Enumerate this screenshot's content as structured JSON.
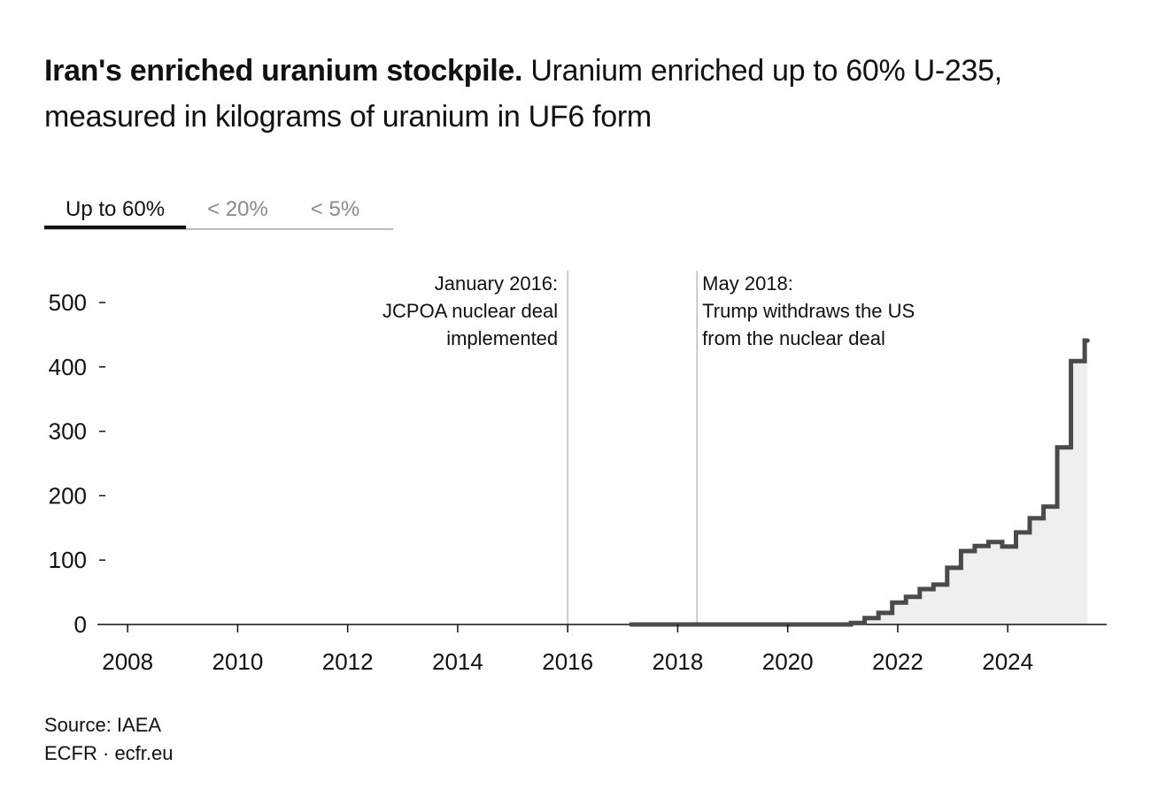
{
  "title": {
    "bold": "Iran's enriched uranium stockpile.",
    "rest": "Uranium enriched up to 60% U-235, measured in kilograms of uranium in UF6 form"
  },
  "tabs": [
    {
      "label": "Up to 60%",
      "active": true
    },
    {
      "label": "< 20%",
      "active": false
    },
    {
      "label": "< 5%",
      "active": false
    }
  ],
  "colors": {
    "line": "#4a4a4a",
    "area": "#efefef",
    "annotation_line": "#bfbfbf",
    "axis": "#111111",
    "tab_inactive": "#8a8a8a"
  },
  "chart_data": {
    "type": "area",
    "step": true,
    "title": "",
    "xlabel": "",
    "ylabel": "",
    "xlim": [
      2007.45,
      2025.8
    ],
    "ylim": [
      0,
      550
    ],
    "x_ticks": [
      2008,
      2010,
      2012,
      2014,
      2016,
      2018,
      2020,
      2022,
      2024
    ],
    "x_tick_labels": [
      "2008",
      "2010",
      "2012",
      "2014",
      "2016",
      "2018",
      "2020",
      "2022",
      "2024"
    ],
    "y_ticks": [
      0,
      100,
      200,
      300,
      400,
      500
    ],
    "y_tick_labels": [
      "0",
      "100",
      "200",
      "300",
      "400",
      "500"
    ],
    "grid": false,
    "series": [
      {
        "x": [
          2017.15,
          2021.15,
          2021.4,
          2021.65,
          2021.9,
          2022.15,
          2022.4,
          2022.65,
          2022.9,
          2023.15,
          2023.4,
          2023.65,
          2023.9,
          2024.15,
          2024.4,
          2024.65,
          2024.9,
          2025.15,
          2025.4,
          2025.45
        ],
        "y": [
          0,
          2.4,
          10,
          18,
          34,
          43,
          55,
          62,
          88,
          114,
          122,
          128,
          121,
          143,
          165,
          183,
          275,
          409,
          441,
          441
        ]
      }
    ],
    "annotations": [
      {
        "x": 2016.0,
        "lines": [
          "January 2016:",
          "JCPOA nuclear deal",
          "implemented"
        ],
        "align": "right"
      },
      {
        "x": 2018.35,
        "lines": [
          "May 2018:",
          "Trump withdraws the US",
          "from the nuclear deal"
        ],
        "align": "left"
      }
    ]
  },
  "footer": {
    "source": "Source: IAEA",
    "credit": "ECFR · ecfr.eu"
  }
}
